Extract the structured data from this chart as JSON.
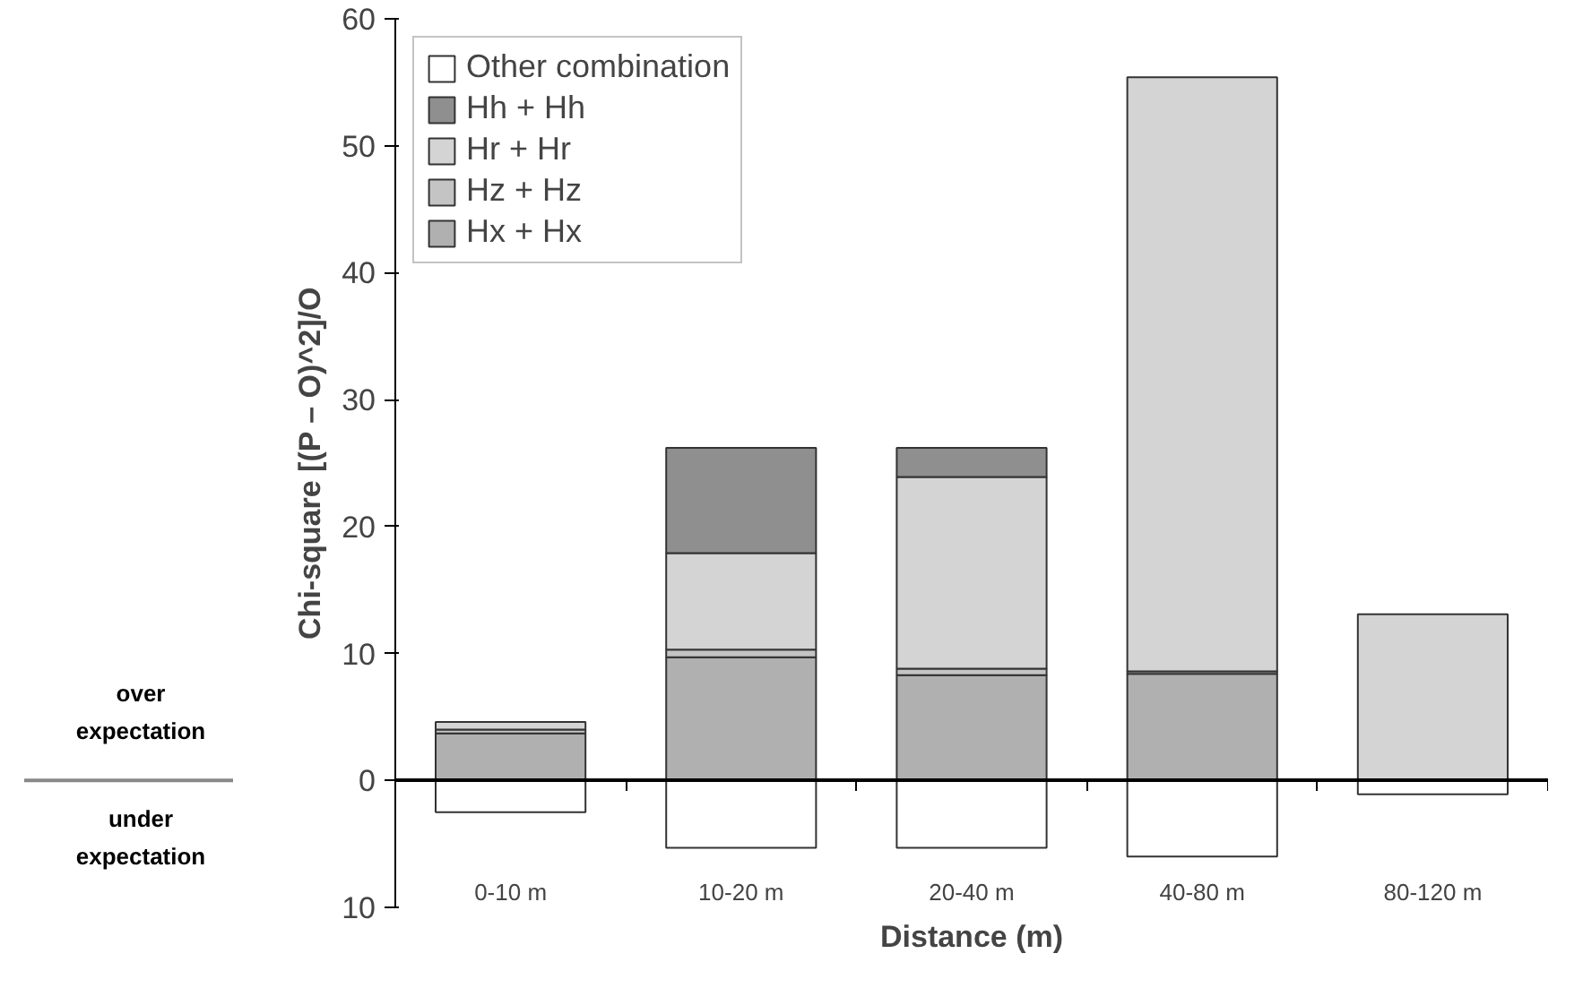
{
  "chart_data": {
    "type": "bar",
    "stacked": true,
    "xlabel": "Distance (m)",
    "ylabel": "Chi-square [(P – O)^2]/O",
    "categories": [
      "0-10 m",
      "10-20 m",
      "20-40 m",
      "40-80 m",
      "80-120 m"
    ],
    "series": [
      {
        "name": "Hx + Hx",
        "color": "#b0b0b0",
        "values": [
          3.7,
          9.7,
          8.3,
          8.4,
          null
        ]
      },
      {
        "name": "Hz + Hz",
        "color": "#c4c4c4",
        "values": [
          0.3,
          0.6,
          0.5,
          0.2,
          null
        ]
      },
      {
        "name": "Hr + Hr",
        "color": "#d4d4d4",
        "values": [
          0.6,
          7.6,
          15.1,
          46.8,
          13.1
        ]
      },
      {
        "name": "Hh + Hh",
        "color": "#8f8f8f",
        "values": [
          null,
          8.3,
          2.3,
          null,
          null
        ]
      },
      {
        "name": "Other combination",
        "color": "#ffffff",
        "values": [
          -2.5,
          -5.3,
          -5.3,
          -6.0,
          -1.1
        ]
      }
    ],
    "ylim": [
      -10,
      60
    ],
    "yticks": [
      {
        "value": -10,
        "label": "10"
      },
      0,
      10,
      20,
      30,
      40,
      50,
      60
    ],
    "legend": "top left",
    "annotations": [
      "over expectation",
      "under expectation"
    ]
  }
}
